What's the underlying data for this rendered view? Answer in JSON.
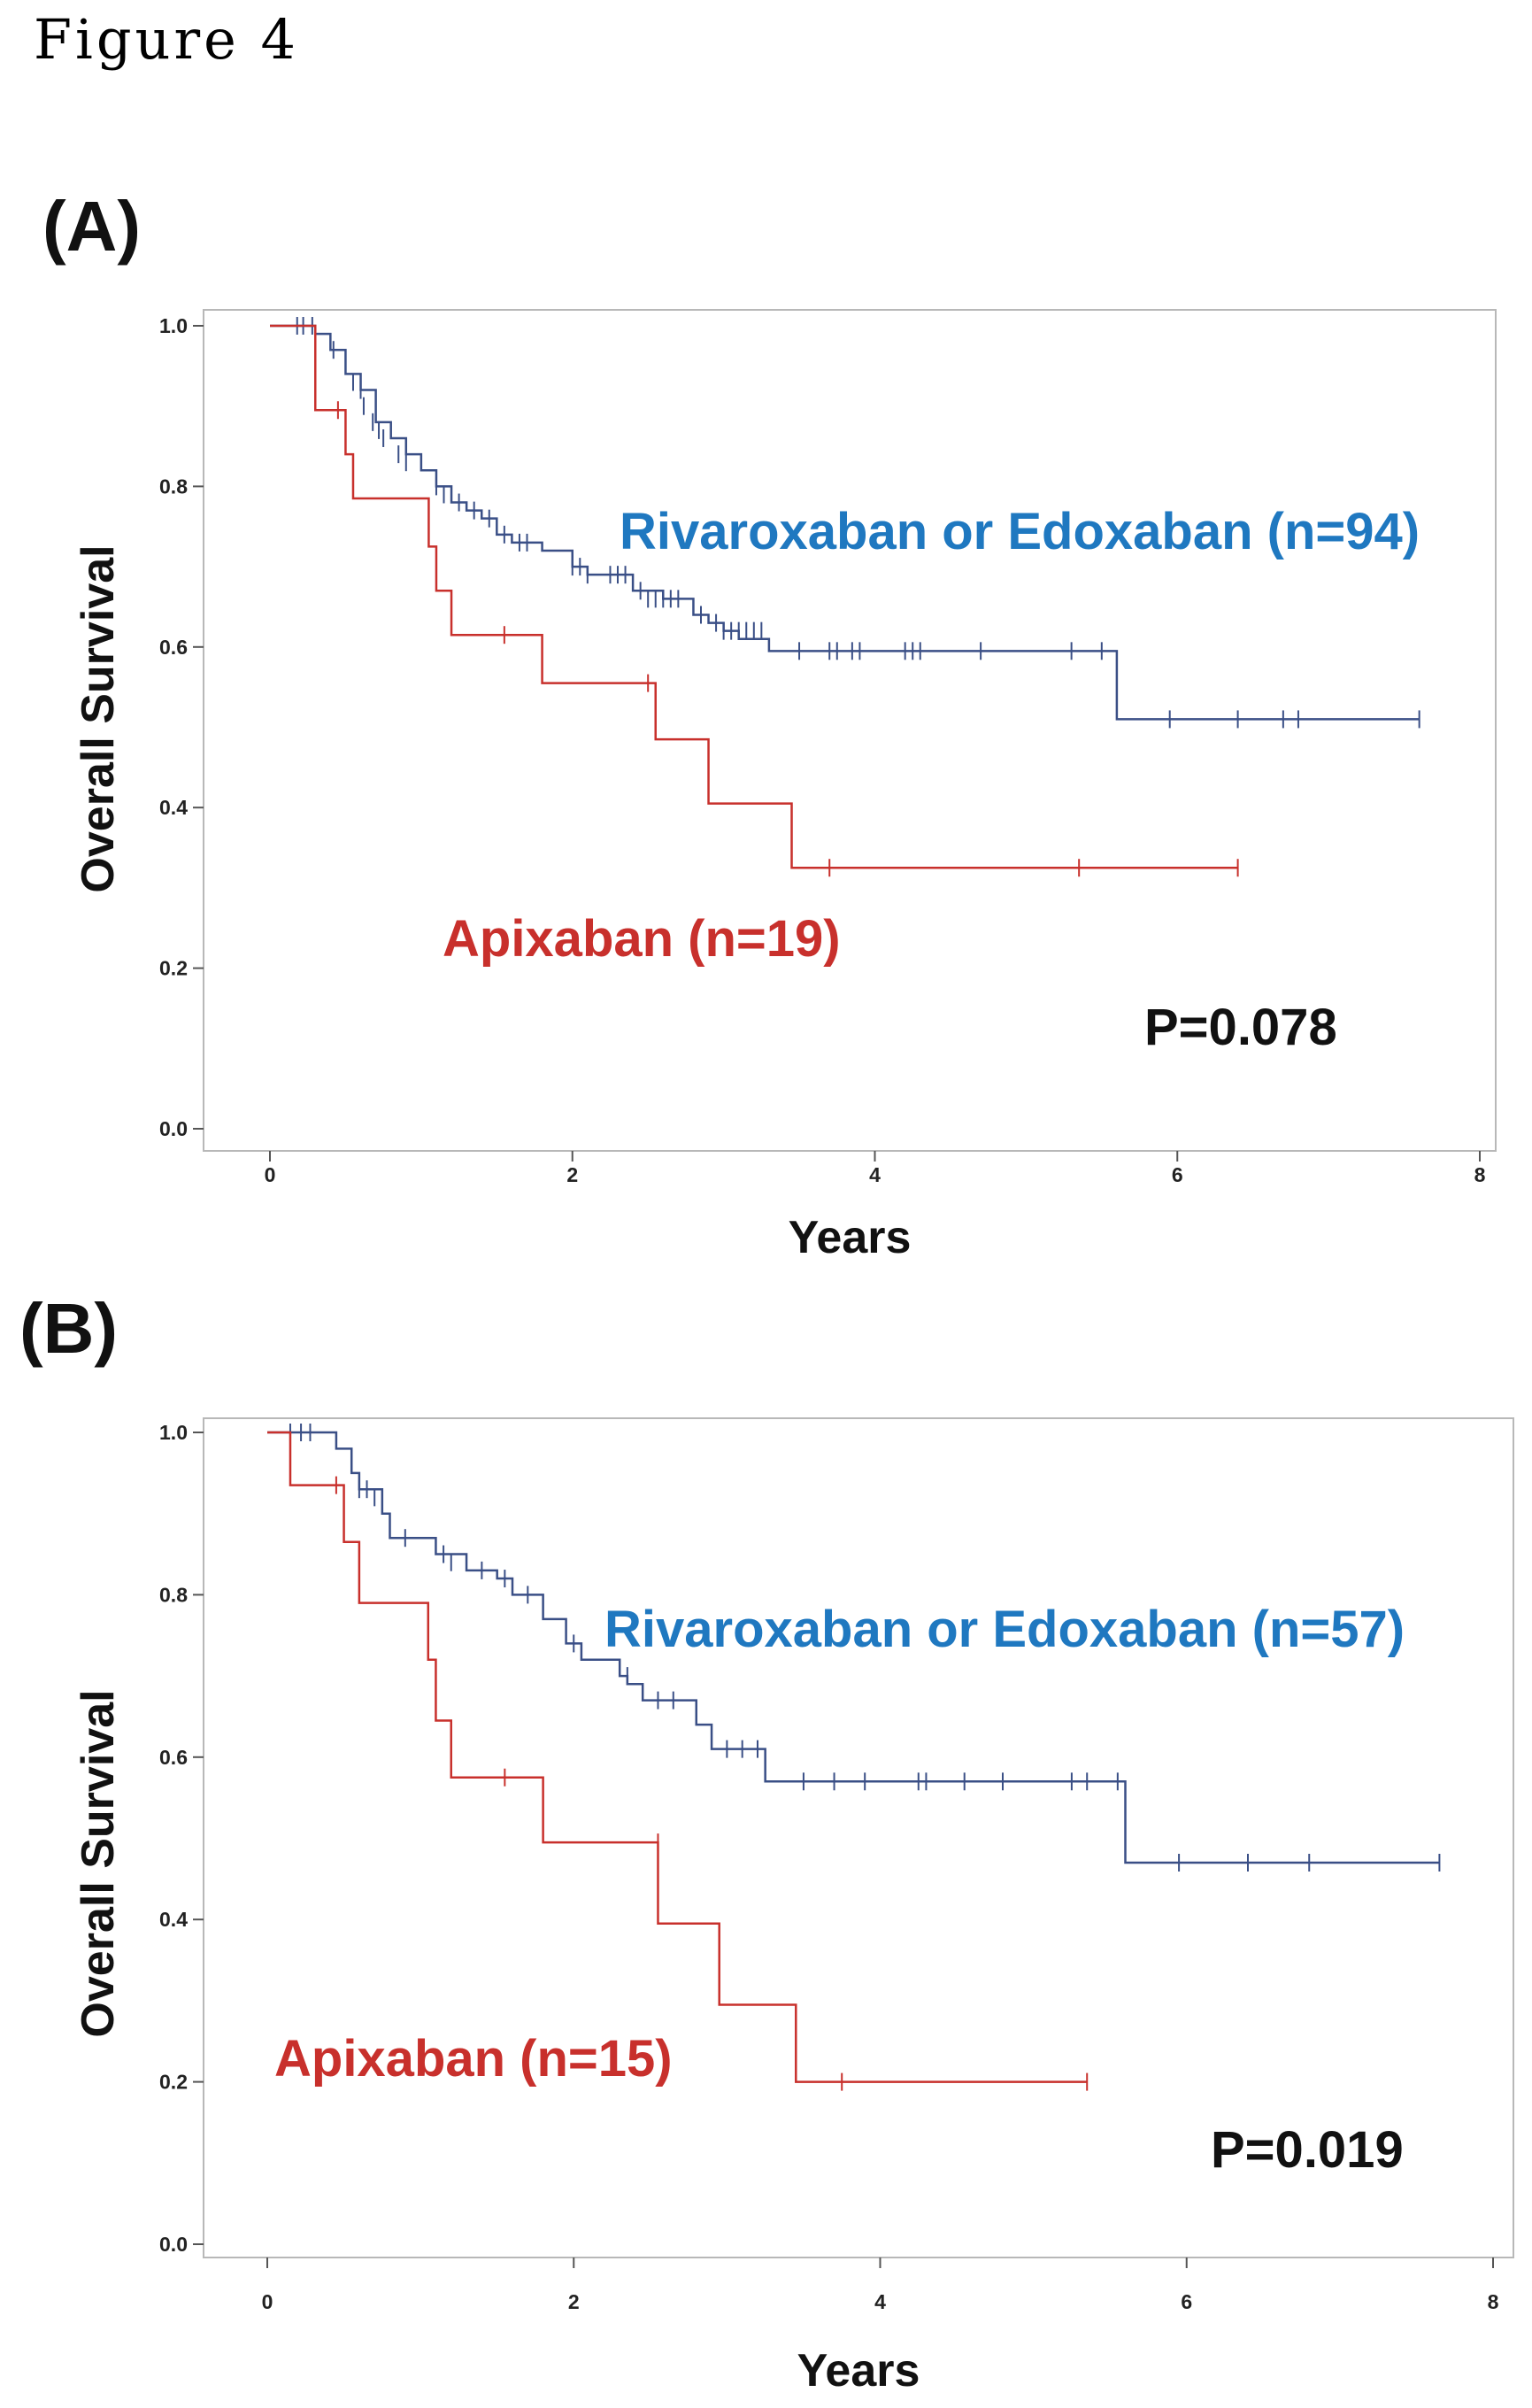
{
  "figure": {
    "title": "Figure 4",
    "panel_a_label": "(A)",
    "panel_b_label": "(B)"
  },
  "colors": {
    "rivaroxaban_line": "#3a4f86",
    "rivaroxaban_label": "#1f78c0",
    "apixaban": "#c8302c",
    "frame": "#b8b8b8"
  },
  "chart_data": [
    {
      "type": "line",
      "panel": "A",
      "xlabel": "Years",
      "ylabel": "Overall Survival",
      "xlim": [
        0,
        8
      ],
      "ylim": [
        0,
        1
      ],
      "xticks": [
        0,
        2,
        4,
        6,
        8
      ],
      "xtick_labels": [
        "0",
        "2",
        "4",
        "6",
        "8"
      ],
      "yticks": [
        0,
        0.2,
        0.4,
        0.6,
        0.8,
        1.0
      ],
      "ytick_labels": [
        "0.0",
        "0.2",
        "0.4",
        "0.6",
        "0.8",
        "1.0"
      ],
      "pvalue": "P=0.078",
      "series": [
        {
          "name": "Rivaroxaban or Edoxaban (n=94)",
          "label": "Rivaroxaban or Edoxaban (n=94)",
          "color_key": "rivaroxaban_line",
          "steps": [
            [
              0,
              1.0
            ],
            [
              0.3,
              0.99
            ],
            [
              0.4,
              0.97
            ],
            [
              0.5,
              0.94
            ],
            [
              0.6,
              0.92
            ],
            [
              0.7,
              0.88
            ],
            [
              0.8,
              0.86
            ],
            [
              0.9,
              0.84
            ],
            [
              1.0,
              0.82
            ],
            [
              1.1,
              0.8
            ],
            [
              1.2,
              0.78
            ],
            [
              1.3,
              0.77
            ],
            [
              1.4,
              0.76
            ],
            [
              1.5,
              0.74
            ],
            [
              1.6,
              0.73
            ],
            [
              1.8,
              0.72
            ],
            [
              2.0,
              0.7
            ],
            [
              2.1,
              0.69
            ],
            [
              2.4,
              0.67
            ],
            [
              2.6,
              0.66
            ],
            [
              2.8,
              0.64
            ],
            [
              2.9,
              0.63
            ],
            [
              3.0,
              0.62
            ],
            [
              3.1,
              0.61
            ],
            [
              3.3,
              0.595
            ],
            [
              5.6,
              0.51
            ],
            [
              7.6,
              0.51
            ]
          ],
          "censors": [
            [
              0.18,
              1.0
            ],
            [
              0.22,
              1.0
            ],
            [
              0.28,
              1.0
            ],
            [
              0.42,
              0.97
            ],
            [
              0.55,
              0.93
            ],
            [
              0.6,
              0.92
            ],
            [
              0.62,
              0.9
            ],
            [
              0.68,
              0.88
            ],
            [
              0.72,
              0.87
            ],
            [
              0.75,
              0.86
            ],
            [
              0.85,
              0.84
            ],
            [
              0.9,
              0.83
            ],
            [
              1.1,
              0.8
            ],
            [
              1.15,
              0.79
            ],
            [
              1.25,
              0.78
            ],
            [
              1.35,
              0.77
            ],
            [
              1.45,
              0.76
            ],
            [
              1.55,
              0.74
            ],
            [
              1.65,
              0.73
            ],
            [
              1.7,
              0.73
            ],
            [
              2.0,
              0.7
            ],
            [
              2.05,
              0.7
            ],
            [
              2.1,
              0.69
            ],
            [
              2.25,
              0.69
            ],
            [
              2.3,
              0.69
            ],
            [
              2.35,
              0.69
            ],
            [
              2.45,
              0.67
            ],
            [
              2.5,
              0.66
            ],
            [
              2.55,
              0.66
            ],
            [
              2.6,
              0.66
            ],
            [
              2.65,
              0.66
            ],
            [
              2.7,
              0.66
            ],
            [
              2.85,
              0.64
            ],
            [
              2.95,
              0.63
            ],
            [
              3.0,
              0.62
            ],
            [
              3.05,
              0.62
            ],
            [
              3.1,
              0.62
            ],
            [
              3.15,
              0.62
            ],
            [
              3.2,
              0.62
            ],
            [
              3.25,
              0.62
            ],
            [
              3.5,
              0.595
            ],
            [
              3.7,
              0.595
            ],
            [
              3.75,
              0.595
            ],
            [
              3.85,
              0.595
            ],
            [
              3.9,
              0.595
            ],
            [
              4.2,
              0.595
            ],
            [
              4.25,
              0.595
            ],
            [
              4.3,
              0.595
            ],
            [
              4.7,
              0.595
            ],
            [
              5.3,
              0.595
            ],
            [
              5.5,
              0.595
            ],
            [
              5.95,
              0.51
            ],
            [
              6.4,
              0.51
            ],
            [
              6.7,
              0.51
            ],
            [
              6.8,
              0.51
            ],
            [
              7.6,
              0.51
            ]
          ]
        },
        {
          "name": "Apixaban (n=19)",
          "label": "Apixaban (n=19)",
          "color_key": "apixaban",
          "steps": [
            [
              0,
              1.0
            ],
            [
              0.15,
              1.0
            ],
            [
              0.3,
              0.895
            ],
            [
              0.5,
              0.84
            ],
            [
              0.55,
              0.785
            ],
            [
              1.05,
              0.725
            ],
            [
              1.1,
              0.67
            ],
            [
              1.2,
              0.615
            ],
            [
              1.8,
              0.555
            ],
            [
              2.55,
              0.485
            ],
            [
              2.9,
              0.405
            ],
            [
              3.45,
              0.325
            ],
            [
              6.4,
              0.325
            ]
          ],
          "censors": [
            [
              0.45,
              0.895
            ],
            [
              1.55,
              0.615
            ],
            [
              2.5,
              0.555
            ],
            [
              3.7,
              0.325
            ],
            [
              5.35,
              0.325
            ],
            [
              6.4,
              0.325
            ]
          ]
        }
      ]
    },
    {
      "type": "line",
      "panel": "B",
      "xlabel": "Years",
      "ylabel": "Overall Survival",
      "xlim": [
        0,
        8
      ],
      "ylim": [
        0,
        1
      ],
      "xticks": [
        0,
        2,
        4,
        6,
        8
      ],
      "xtick_labels": [
        "0",
        "2",
        "4",
        "6",
        "8"
      ],
      "yticks": [
        0,
        0.2,
        0.4,
        0.6,
        0.8,
        1.0
      ],
      "ytick_labels": [
        "0.0",
        "0.2",
        "0.4",
        "0.6",
        "0.8",
        "1.0"
      ],
      "pvalue": "P=0.019",
      "series": [
        {
          "name": "Rivaroxaban or Edoxaban (n=57)",
          "label": "Rivaroxaban or Edoxaban (n=57)",
          "color_key": "rivaroxaban_line",
          "steps": [
            [
              0,
              1.0
            ],
            [
              0.45,
              0.98
            ],
            [
              0.55,
              0.95
            ],
            [
              0.6,
              0.93
            ],
            [
              0.75,
              0.9
            ],
            [
              0.8,
              0.87
            ],
            [
              1.1,
              0.85
            ],
            [
              1.3,
              0.83
            ],
            [
              1.5,
              0.82
            ],
            [
              1.6,
              0.8
            ],
            [
              1.8,
              0.77
            ],
            [
              1.95,
              0.74
            ],
            [
              2.05,
              0.72
            ],
            [
              2.3,
              0.7
            ],
            [
              2.35,
              0.69
            ],
            [
              2.45,
              0.67
            ],
            [
              2.8,
              0.64
            ],
            [
              2.9,
              0.61
            ],
            [
              3.25,
              0.57
            ],
            [
              5.6,
              0.47
            ],
            [
              7.65,
              0.47
            ]
          ],
          "censors": [
            [
              0.15,
              1.0
            ],
            [
              0.22,
              1.0
            ],
            [
              0.28,
              1.0
            ],
            [
              0.6,
              0.93
            ],
            [
              0.65,
              0.93
            ],
            [
              0.7,
              0.92
            ],
            [
              0.9,
              0.87
            ],
            [
              1.15,
              0.85
            ],
            [
              1.2,
              0.84
            ],
            [
              1.4,
              0.83
            ],
            [
              1.55,
              0.82
            ],
            [
              1.7,
              0.8
            ],
            [
              2.0,
              0.74
            ],
            [
              2.3,
              0.71
            ],
            [
              2.35,
              0.7
            ],
            [
              2.45,
              0.68
            ],
            [
              2.55,
              0.67
            ],
            [
              2.65,
              0.67
            ],
            [
              3.0,
              0.61
            ],
            [
              3.1,
              0.61
            ],
            [
              3.2,
              0.61
            ],
            [
              3.5,
              0.57
            ],
            [
              3.7,
              0.57
            ],
            [
              3.9,
              0.57
            ],
            [
              4.25,
              0.57
            ],
            [
              4.3,
              0.57
            ],
            [
              4.55,
              0.57
            ],
            [
              4.8,
              0.57
            ],
            [
              5.25,
              0.57
            ],
            [
              5.35,
              0.57
            ],
            [
              5.55,
              0.57
            ],
            [
              5.95,
              0.47
            ],
            [
              6.4,
              0.47
            ],
            [
              6.8,
              0.47
            ],
            [
              7.65,
              0.47
            ]
          ]
        },
        {
          "name": "Apixaban (n=15)",
          "label": "Apixaban (n=15)",
          "color_key": "apixaban",
          "steps": [
            [
              0,
              1.0
            ],
            [
              0.15,
              0.935
            ],
            [
              0.5,
              0.865
            ],
            [
              0.6,
              0.79
            ],
            [
              1.05,
              0.72
            ],
            [
              1.1,
              0.645
            ],
            [
              1.2,
              0.575
            ],
            [
              1.8,
              0.495
            ],
            [
              2.55,
              0.395
            ],
            [
              2.95,
              0.295
            ],
            [
              3.45,
              0.2
            ],
            [
              5.35,
              0.2
            ]
          ],
          "censors": [
            [
              0.45,
              0.935
            ],
            [
              1.55,
              0.575
            ],
            [
              2.55,
              0.495
            ],
            [
              3.75,
              0.2
            ],
            [
              5.35,
              0.2
            ]
          ]
        }
      ]
    }
  ]
}
